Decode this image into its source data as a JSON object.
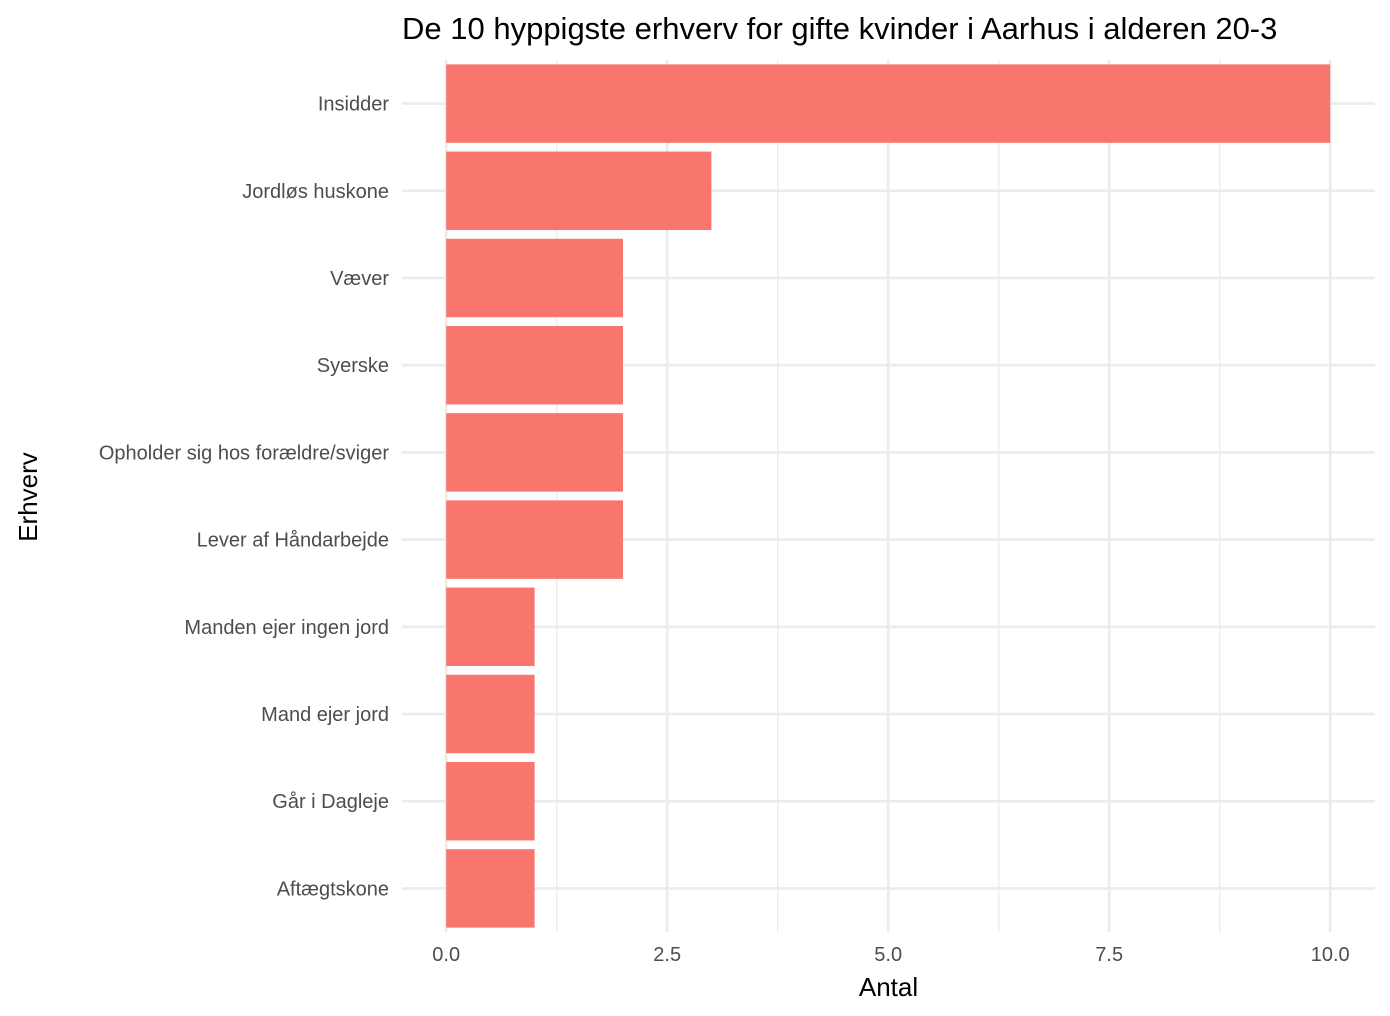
{
  "chart_data": {
    "type": "bar",
    "orientation": "horizontal",
    "title": "De 10 hyppigste erhverv for gifte kvinder i Aarhus i alderen 20-3",
    "xlabel": "Antal",
    "ylabel": "Erhverv",
    "categories": [
      "Insidder",
      "Jordløs huskone",
      "Væver",
      "Syerske",
      "Opholder sig hos forældre/sviger",
      "Lever af Håndarbejde",
      "Manden ejer ingen jord",
      "Mand ejer jord",
      "Går i Dagleje",
      "Aftægtskone"
    ],
    "values": [
      10,
      3,
      2,
      2,
      2,
      2,
      1,
      1,
      1,
      1
    ],
    "xlim": [
      0,
      10
    ],
    "xticks": [
      "0.0",
      "2.5",
      "5.0",
      "7.5",
      "10.0"
    ],
    "bar_color": "#F8766D",
    "grid": true,
    "legend": "none"
  }
}
